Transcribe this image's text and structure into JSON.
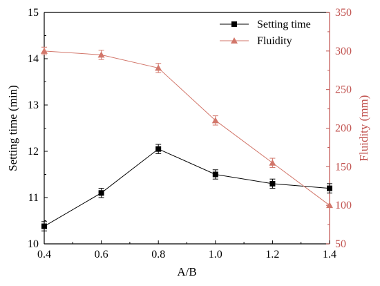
{
  "chart_data": {
    "type": "line",
    "title": "",
    "xlabel": "A/B",
    "ylabel_left": "Setting time (min)",
    "ylabel_right": "Fluidity (mm)",
    "x": [
      0.4,
      0.6,
      0.8,
      1.0,
      1.2,
      1.4
    ],
    "x_ticks": [
      "0.4",
      "0.6",
      "0.8",
      "1.0",
      "1.2",
      "1.4"
    ],
    "xlim": [
      0.4,
      1.4
    ],
    "ylim_left": [
      10,
      15
    ],
    "ylim_right": [
      50,
      350
    ],
    "y_left_ticks": [
      "10",
      "11",
      "12",
      "13",
      "14",
      "15"
    ],
    "y_right_ticks": [
      "50",
      "100",
      "150",
      "200",
      "250",
      "300",
      "350"
    ],
    "grid": false,
    "legend_position": "top-right",
    "series": [
      {
        "name": "Setting time",
        "axis": "left",
        "marker": "square",
        "color": "#000000",
        "values": [
          10.38,
          11.1,
          12.05,
          11.5,
          11.3,
          11.2
        ],
        "errors": [
          0.1,
          0.1,
          0.1,
          0.1,
          0.1,
          0.1
        ]
      },
      {
        "name": "Fluidity",
        "axis": "right",
        "marker": "triangle",
        "color": "#d2766a",
        "values": [
          300,
          295,
          278,
          210,
          155,
          100
        ],
        "errors": [
          5,
          6,
          6,
          6,
          6,
          0
        ]
      }
    ],
    "colors": {
      "left_axis": "#000000",
      "right_axis": "#c0504d"
    }
  }
}
